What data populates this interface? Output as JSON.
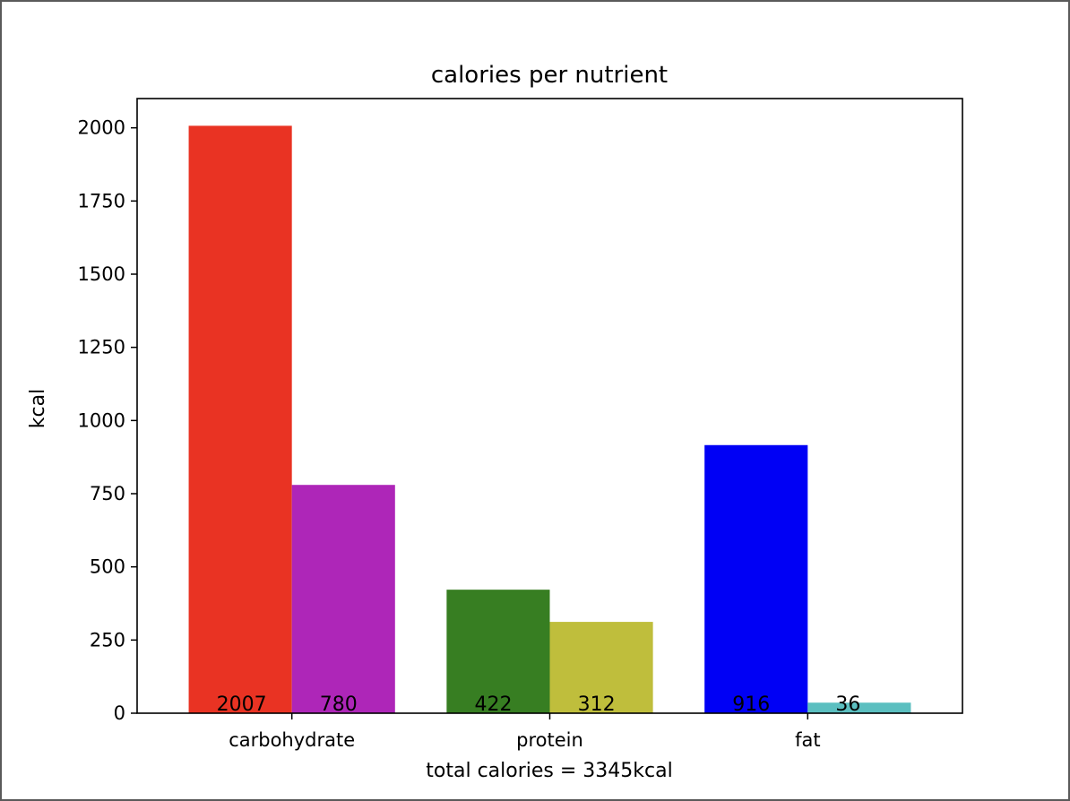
{
  "chart_data": {
    "type": "bar",
    "title": "calories per nutrient",
    "xlabel": "total calories = 3345kcal",
    "ylabel": "kcal",
    "categories": [
      "carbohydrate",
      "protein",
      "fat"
    ],
    "bars": [
      {
        "category": "carbohydrate",
        "value": 2007,
        "label": "2007",
        "color": "#e93323"
      },
      {
        "category": "carbohydrate",
        "value": 780,
        "label": "780",
        "color": "#ae26b8"
      },
      {
        "category": "protein",
        "value": 422,
        "label": "422",
        "color": "#377e22"
      },
      {
        "category": "protein",
        "value": 312,
        "label": "312",
        "color": "#bfbe3c"
      },
      {
        "category": "fat",
        "value": 916,
        "label": "916",
        "color": "#0000f5"
      },
      {
        "category": "fat",
        "value": 36,
        "label": "36",
        "color": "#5bbfc0"
      }
    ],
    "ylim": [
      0,
      2100
    ],
    "yticks": [
      0,
      250,
      500,
      750,
      1000,
      1250,
      1500,
      1750,
      2000
    ],
    "grid": false
  }
}
